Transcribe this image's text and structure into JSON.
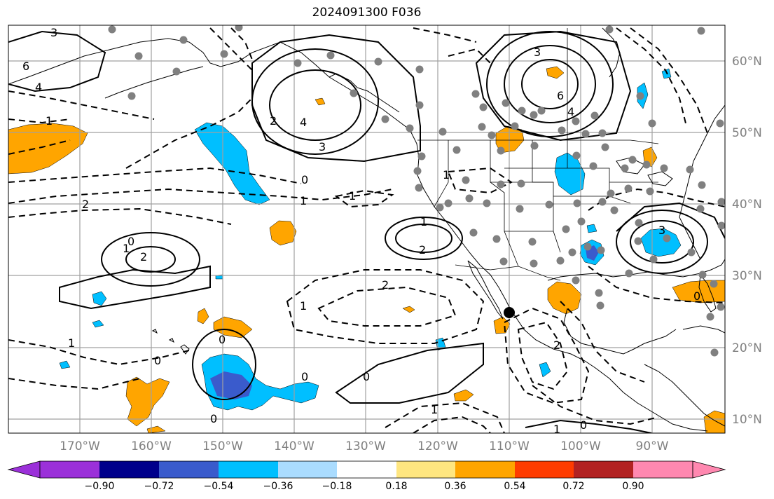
{
  "title": "2024091300 F036",
  "map": {
    "lon_range": [
      -180,
      -80
    ],
    "lat_range": [
      8,
      65
    ],
    "lon_ticks": [
      "170°W",
      "160°W",
      "150°W",
      "140°W",
      "130°W",
      "120°W",
      "110°W",
      "100°W",
      "90°W"
    ],
    "lat_ticks": [
      "60°N",
      "50°N",
      "40°N",
      "30°N",
      "20°N",
      "10°N"
    ],
    "colors": {
      "land_outline": "#000000",
      "gridline": "#a0a0a0",
      "station_dot": "#808080",
      "storm_marker": "#000000"
    }
  },
  "contour_labels": [
    "3",
    "6",
    "4",
    "1",
    "4",
    "3",
    "2",
    "3",
    "6",
    "4",
    "0",
    "1",
    "1",
    "2",
    "1",
    "1",
    "2",
    "0",
    "2",
    "2",
    "1",
    "1",
    "0",
    "0",
    "0",
    "1",
    "0",
    "0",
    "1",
    "0",
    "2",
    "3",
    "0",
    "1"
  ],
  "colorbar": {
    "colors": [
      "#9b30d9",
      "#00008b",
      "#3a5bcc",
      "#00bfff",
      "#aadcff",
      "#ffffff",
      "#ffe680",
      "#ffa500",
      "#ff3c00",
      "#b22222",
      "#ff88b0"
    ],
    "tick_labels": [
      "−0.90",
      "−0.72",
      "−0.54",
      "−0.36",
      "−0.18",
      "0.18",
      "0.36",
      "0.54",
      "0.72",
      "0.90"
    ]
  }
}
